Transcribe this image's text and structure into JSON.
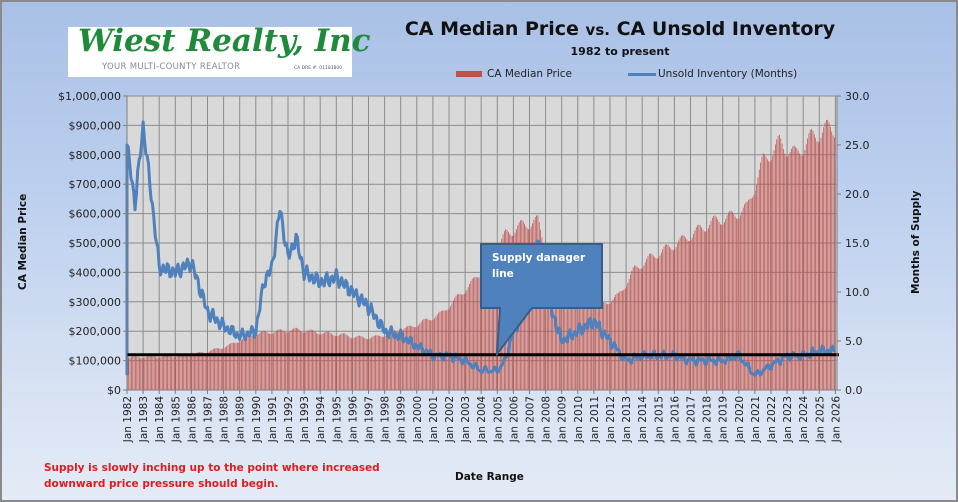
{
  "logo": {
    "name": "Wiest Realty, Inc",
    "tagline": "YOUR MULTI-COUNTY REALTOR",
    "license": "CA DRE #: 01183800"
  },
  "chart_data": {
    "type": "bar+line",
    "title_main_a": "CA Median Price ",
    "title_vs": "vs.",
    "title_main_b": " CA Unsold Inventory",
    "subtitle": "1982 to present",
    "xlabel": "Date Range",
    "ylabel_left": "CA Median Price",
    "ylabel_right": "Months of Supply",
    "legend": [
      {
        "name": "CA Median Price",
        "type": "bar",
        "color": "#c0504d"
      },
      {
        "name": "Unsold Inventory (Months)",
        "type": "line",
        "color": "#4f81bd"
      }
    ],
    "legend_position": "top",
    "grid": true,
    "y_left": {
      "min": 0,
      "max": 1000000,
      "step": 100000,
      "ticks": [
        "$0",
        "$100,000",
        "$200,000",
        "$300,000",
        "$400,000",
        "$500,000",
        "$600,000",
        "$700,000",
        "$800,000",
        "$900,000",
        "$1,000,000"
      ]
    },
    "y_right": {
      "min": 0,
      "max": 30,
      "step": 5,
      "ticks": [
        "0.0",
        "5.0",
        "10.0",
        "15.0",
        "20.0",
        "25.0",
        "30.0"
      ]
    },
    "x_ticks": [
      "Jan 1982",
      "Jan 1983",
      "Jan 1984",
      "Jan 1985",
      "Jan 1986",
      "Jan 1987",
      "Jan 1988",
      "Jan 1989",
      "Jan 1990",
      "Jan 1991",
      "Jan 1992",
      "Jan 1993",
      "Jan 1994",
      "Jan 1995",
      "Jan 1996",
      "Jan 1997",
      "Jan 1998",
      "Jan 1999",
      "Jan 2000",
      "Jan 2001",
      "Jan 2002",
      "Jan 2003",
      "Jan 2004",
      "Jan 2005",
      "Jan 2006",
      "Jan 2007",
      "Jan 2008",
      "Jan 2009",
      "Jan 2010",
      "Jan 2011",
      "Jan 2012",
      "Jan 2013",
      "Jan 2014",
      "Jan 2015",
      "Jan 2016",
      "Jan 2017",
      "Jan 2018",
      "Jan 2019",
      "Jan 2020",
      "Jan 2021",
      "Jan 2022",
      "Jan 2023",
      "Jan 2024",
      "Jan 2025",
      "Jan 2026"
    ],
    "median_price_by_year": {
      "note": "approximate mid-year values read from bars (monthly bars shown)",
      "years": [
        1982,
        1983,
        1984,
        1985,
        1986,
        1987,
        1988,
        1989,
        1990,
        1991,
        1992,
        1993,
        1994,
        1995,
        1996,
        1997,
        1998,
        1999,
        2000,
        2001,
        2002,
        2003,
        2004,
        2005,
        2006,
        2007,
        2008,
        2009,
        2010,
        2011,
        2012,
        2013,
        2014,
        2015,
        2016,
        2017,
        2018,
        2019,
        2020,
        2021,
        2022,
        2023,
        2024,
        2025
      ],
      "values": [
        111000,
        114000,
        114000,
        118000,
        125000,
        138000,
        155000,
        185000,
        195000,
        200000,
        205000,
        198000,
        192000,
        186000,
        178000,
        180000,
        198000,
        212000,
        235000,
        260000,
        315000,
        370000,
        440000,
        530000,
        560000,
        575000,
        380000,
        275000,
        305000,
        290000,
        320000,
        410000,
        450000,
        480000,
        510000,
        545000,
        575000,
        590000,
        620000,
        780000,
        840000,
        800000,
        860000,
        890000
      ]
    },
    "inventory_months_by_year": {
      "note": "approximate values of the line",
      "years": [
        1982,
        1982.5,
        1983,
        1983.5,
        1984,
        1985,
        1986,
        1987,
        1988,
        1989,
        1990,
        1990.5,
        1991,
        1991.5,
        1992,
        1992.5,
        1993,
        1994,
        1995,
        1996,
        1997,
        1998,
        1999,
        2000,
        2001,
        2002,
        2003,
        2004,
        2005,
        2005.5,
        2006,
        2007,
        2007.5,
        2008,
        2009,
        2010,
        2011,
        2012,
        2013,
        2014,
        2015,
        2016,
        2017,
        2018,
        2019,
        2020,
        2021,
        2022,
        2023,
        2024,
        2025,
        2025.9
      ],
      "values": [
        25.0,
        19.0,
        27.0,
        20.0,
        12.5,
        12.0,
        13.0,
        8.0,
        6.5,
        5.5,
        6.0,
        11.0,
        12.5,
        18.5,
        13.5,
        15.5,
        12.0,
        11.0,
        11.5,
        10.0,
        8.5,
        6.0,
        5.5,
        4.5,
        3.5,
        3.5,
        3.0,
        2.0,
        2.0,
        3.0,
        6.0,
        9.0,
        16.0,
        10.0,
        5.0,
        6.0,
        7.0,
        5.0,
        3.0,
        3.5,
        3.5,
        3.5,
        3.0,
        3.0,
        3.0,
        3.5,
        1.5,
        2.5,
        3.5,
        3.5,
        4.0,
        4.0
      ]
    },
    "reference_line": {
      "label": "Supply danager line",
      "value_months": 3.6,
      "color": "#000000"
    }
  },
  "annotation": {
    "callout_line1": "Supply danager",
    "callout_line2": "line",
    "note_line1": "Supply is slowly inching up to the point where increased",
    "note_line2": "downward price pressure should begin."
  }
}
